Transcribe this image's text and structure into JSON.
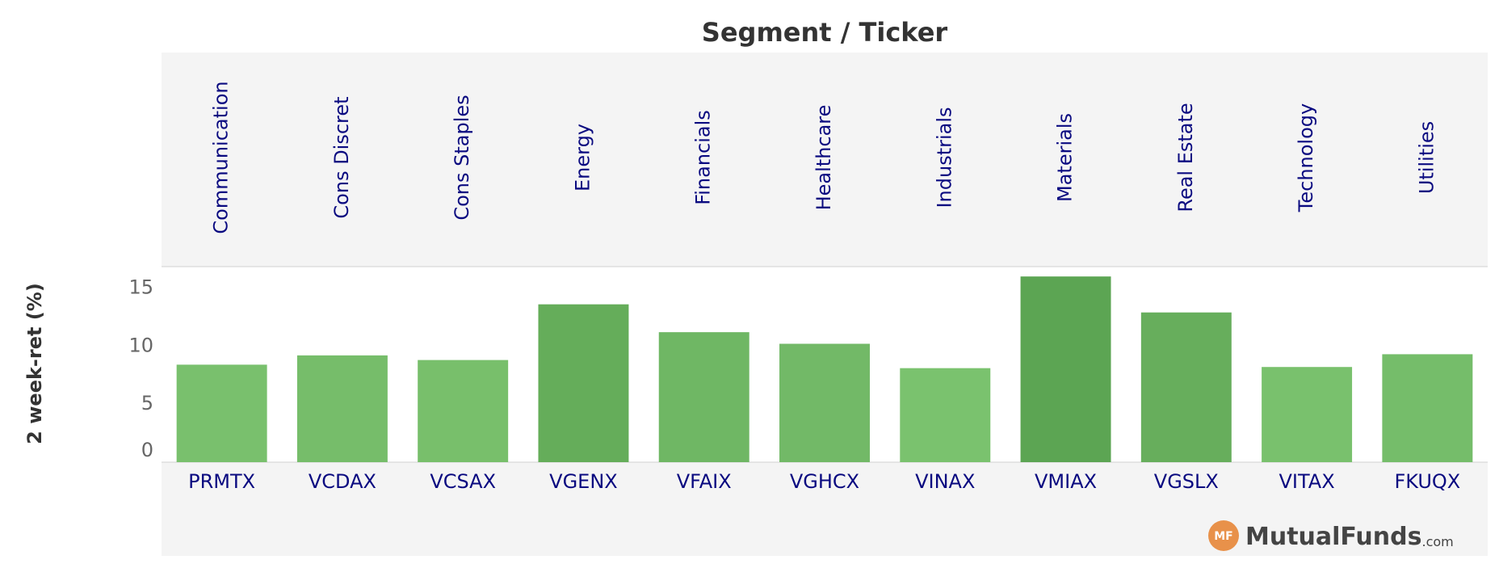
{
  "chart_data": {
    "type": "bar",
    "title": "Segment / Ticker",
    "y_label": "2 week-ret (%)",
    "segments": [
      "Communication",
      "Cons Discret",
      "Cons Staples",
      "Energy",
      "Financials",
      "Healthcare",
      "Industrials",
      "Materials",
      "Real Estate",
      "Technology",
      "Utilities"
    ],
    "categories": [
      "PRMTX",
      "VCDAX",
      "VCSAX",
      "VGENX",
      "VFAIX",
      "VGHCX",
      "VINAX",
      "VMIAX",
      "VGSLX",
      "VITAX",
      "FKUQX"
    ],
    "values": [
      8.4,
      9.2,
      8.8,
      13.6,
      11.2,
      10.2,
      8.1,
      16.0,
      12.9,
      8.2,
      9.3
    ],
    "colors": [
      "#79c06d",
      "#76bd6a",
      "#78bf6b",
      "#65ad5a",
      "#6fb764",
      "#72b967",
      "#7ac26e",
      "#5ca553",
      "#67ae5c",
      "#79c16d",
      "#75bd6a"
    ],
    "ylim": [
      0,
      16.5
    ],
    "yticks": [
      0,
      5,
      10,
      15
    ],
    "grid": false,
    "logo_badge": "MF",
    "logo_text": "MutualFunds",
    "logo_suffix": ".com"
  }
}
